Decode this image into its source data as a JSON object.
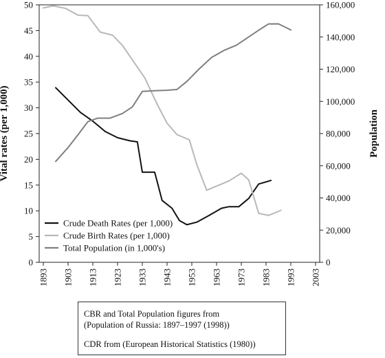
{
  "chart_data": {
    "type": "line",
    "title": "",
    "xlabel": "",
    "ylabel": "Vital rates (per 1,000)",
    "y2label": "Population",
    "ylim": [
      0,
      50
    ],
    "y2lim": [
      0,
      160000
    ],
    "xlim": [
      1893,
      2003
    ],
    "x_ticks": [
      1893,
      1903,
      1913,
      1923,
      1933,
      1943,
      1953,
      1963,
      1973,
      1983,
      1993,
      2003
    ],
    "y_ticks": [
      0,
      5,
      10,
      15,
      20,
      25,
      30,
      35,
      40,
      45,
      50
    ],
    "y2_ticks": [
      "0",
      "20,000",
      "40,000",
      "60,000",
      "80,000",
      "100,000",
      "120,000",
      "140,000",
      "160,000"
    ],
    "legend_position": "bottom-left",
    "grid": false,
    "series": [
      {
        "name": "Crude Death Rates (per 1,000)",
        "axis": "left",
        "color": "#111111",
        "points": [
          [
            1898,
            33.9
          ],
          [
            1908,
            29.1
          ],
          [
            1913,
            27.4
          ],
          [
            1918,
            25.4
          ],
          [
            1923,
            24.2
          ],
          [
            1928,
            23.6
          ],
          [
            1931,
            23.4
          ],
          [
            1933,
            17.5
          ],
          [
            1938,
            17.5
          ],
          [
            1941,
            12.0
          ],
          [
            1945,
            10.5
          ],
          [
            1948,
            8.1
          ],
          [
            1951,
            7.3
          ],
          [
            1955,
            7.8
          ],
          [
            1960,
            9.1
          ],
          [
            1965,
            10.5
          ],
          [
            1968,
            10.8
          ],
          [
            1972,
            10.8
          ],
          [
            1976,
            12.4
          ],
          [
            1980,
            15.2
          ],
          [
            1985,
            15.9
          ]
        ]
      },
      {
        "name": "Crude Birth Rates (per 1,000)",
        "axis": "left",
        "color": "#b8b8b8",
        "points": [
          [
            1893,
            49.4
          ],
          [
            1897,
            49.8
          ],
          [
            1902,
            49.3
          ],
          [
            1907,
            48.0
          ],
          [
            1911,
            47.9
          ],
          [
            1916,
            44.7
          ],
          [
            1921,
            44.1
          ],
          [
            1925,
            42.1
          ],
          [
            1930,
            38.6
          ],
          [
            1934,
            35.8
          ],
          [
            1939,
            30.7
          ],
          [
            1943,
            27.0
          ],
          [
            1947,
            24.8
          ],
          [
            1952,
            23.8
          ],
          [
            1955,
            19.0
          ],
          [
            1959,
            14.0
          ],
          [
            1964,
            15.0
          ],
          [
            1968,
            15.8
          ],
          [
            1973,
            17.3
          ],
          [
            1976,
            16.0
          ],
          [
            1980,
            9.5
          ],
          [
            1984,
            9.1
          ],
          [
            1989,
            10.1
          ]
        ]
      },
      {
        "name": "Total Population (in 1,000's)",
        "axis": "right",
        "color": "#7f7f7f",
        "points": [
          [
            1898,
            62700
          ],
          [
            1903,
            71300
          ],
          [
            1907,
            79200
          ],
          [
            1911,
            87400
          ],
          [
            1915,
            89600
          ],
          [
            1920,
            89600
          ],
          [
            1925,
            92500
          ],
          [
            1929,
            96600
          ],
          [
            1933,
            106200
          ],
          [
            1938,
            106600
          ],
          [
            1943,
            106900
          ],
          [
            1947,
            107400
          ],
          [
            1951,
            112400
          ],
          [
            1956,
            120200
          ],
          [
            1961,
            127300
          ],
          [
            1966,
            131700
          ],
          [
            1971,
            134900
          ],
          [
            1975,
            139000
          ],
          [
            1980,
            144200
          ],
          [
            1984,
            148100
          ],
          [
            1988,
            148200
          ],
          [
            1993,
            144400
          ]
        ]
      }
    ]
  },
  "source_note": {
    "line1": "CBR and Total Population figures from",
    "line2": "(Population of Russia: 1897–1997 (1998))",
    "line3": "CDR from (European Historical Statistics (1980))"
  }
}
